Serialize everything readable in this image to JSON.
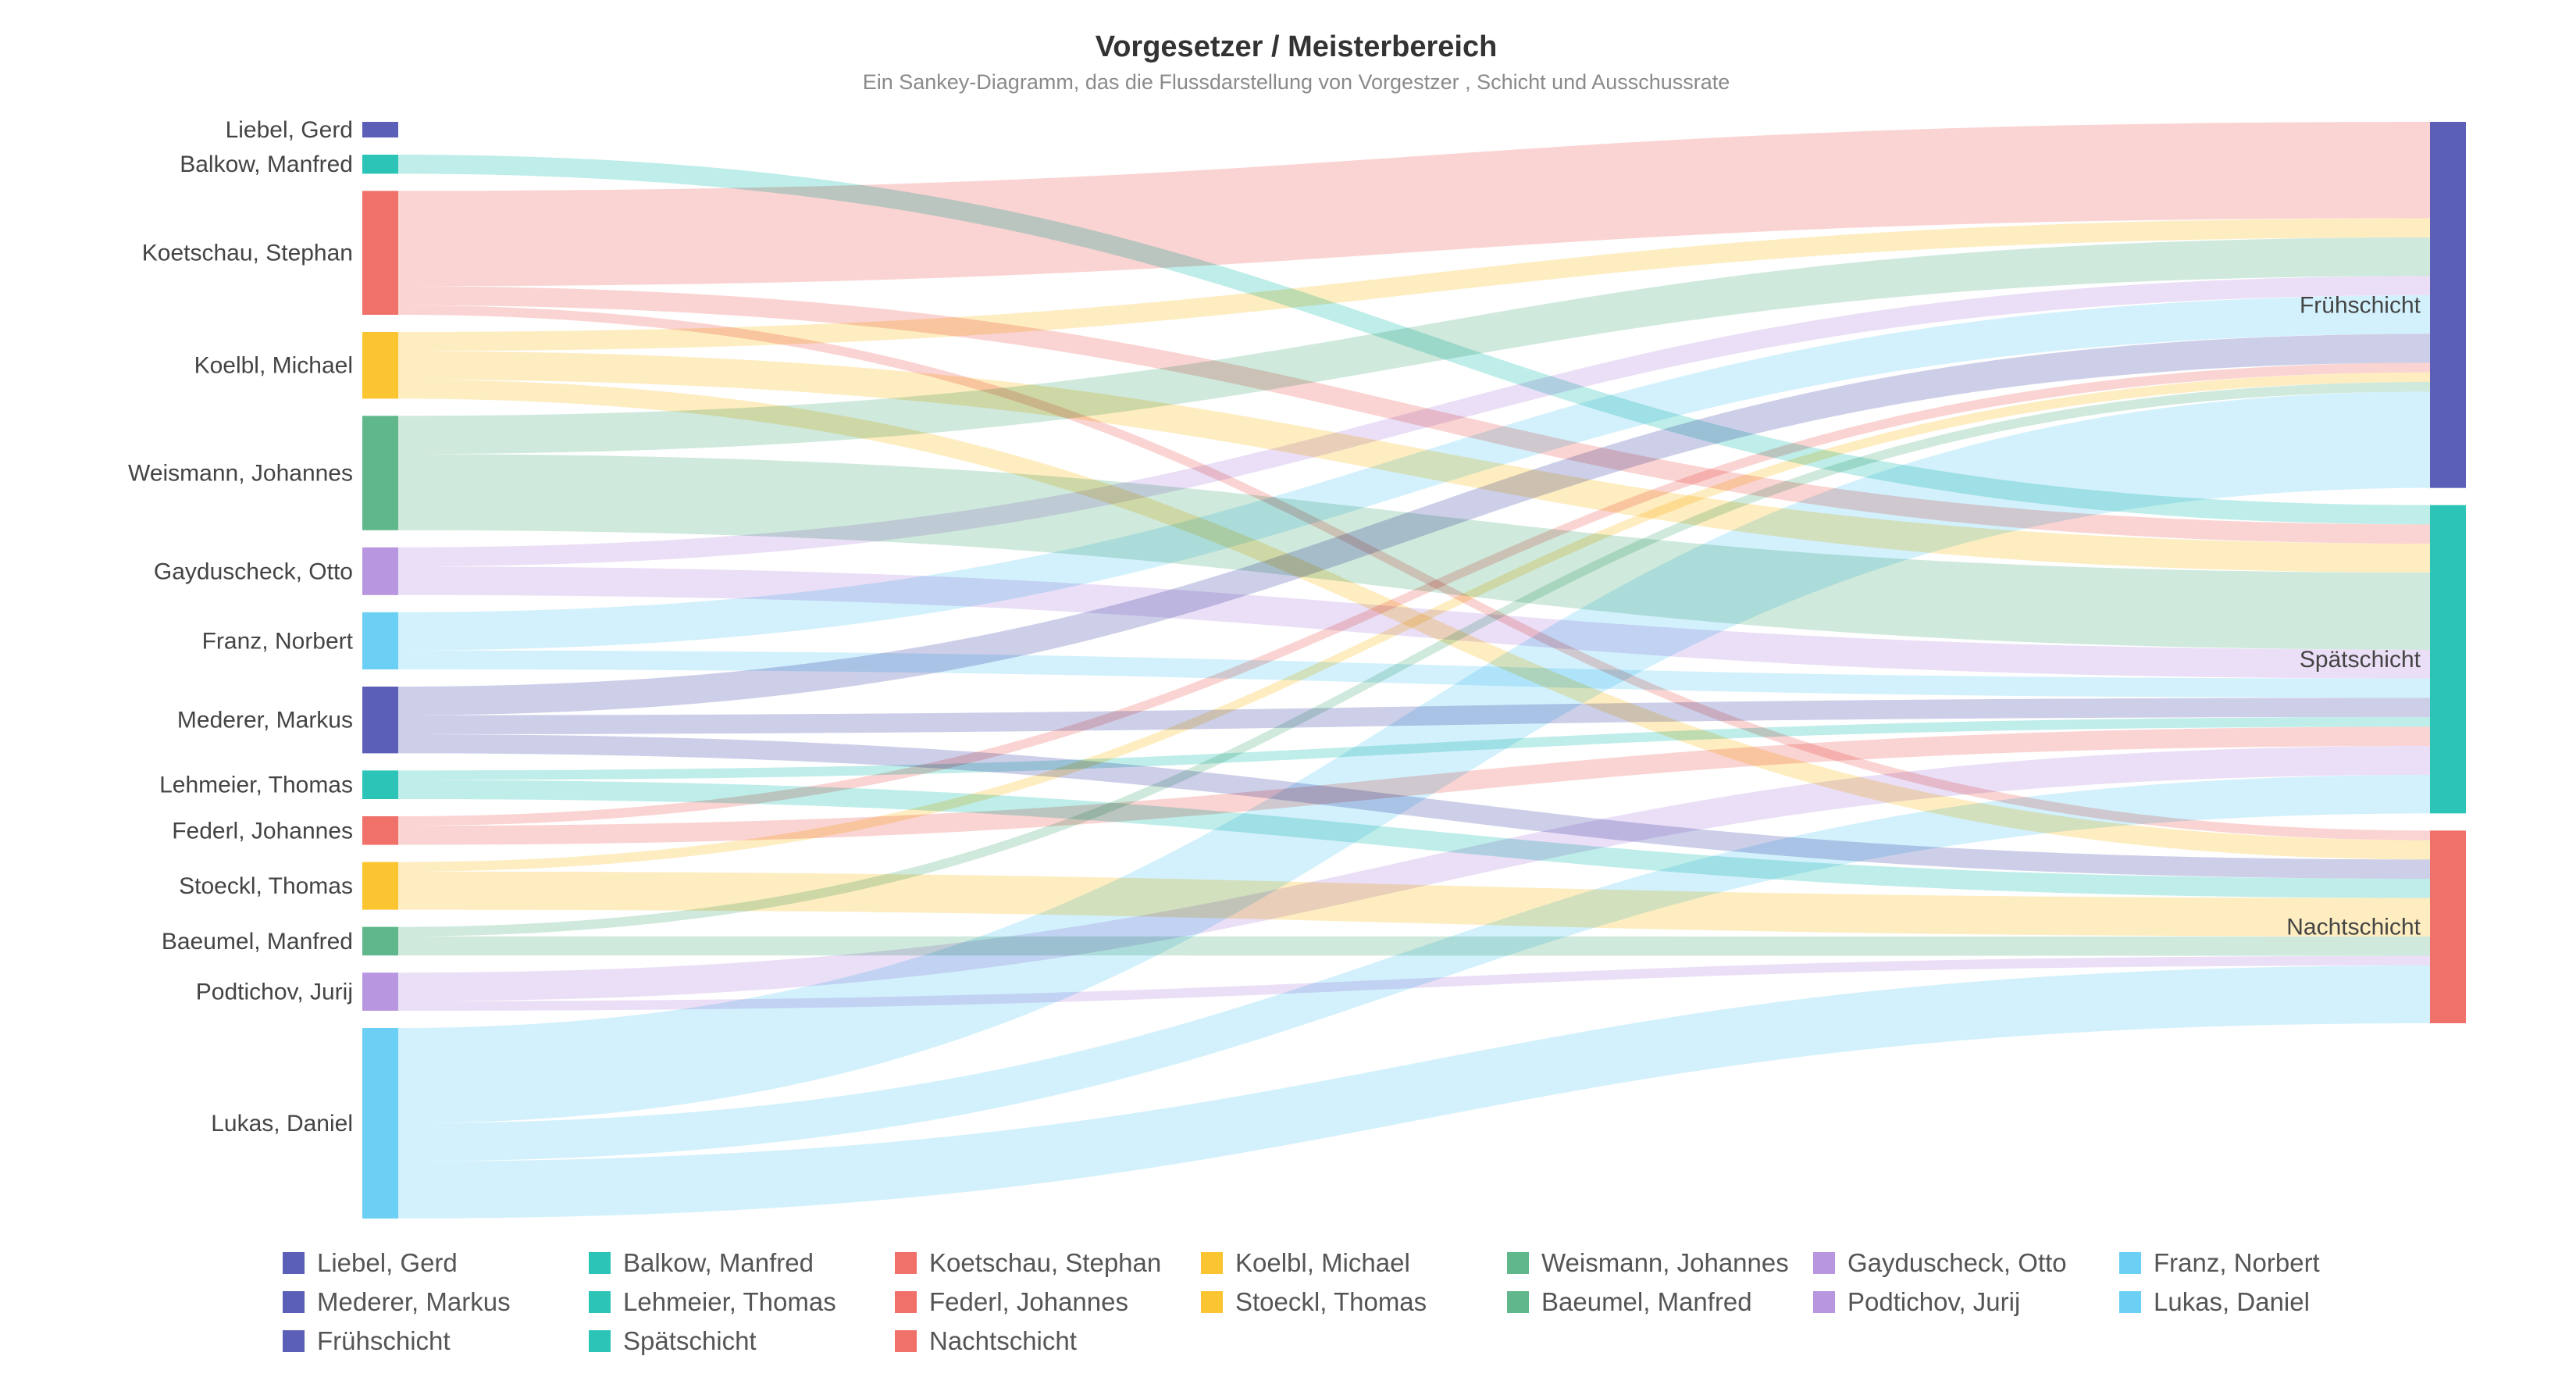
{
  "chart_data": {
    "type": "sankey",
    "title": "Vorgesetzer / Meisterbereich",
    "subtitle": "Ein Sankey-Diagramm, das die Flussdarstellung von Vorgestzer , Schicht und Ausschussrate",
    "colors": {
      "Liebel, Gerd": "#5b5fb7",
      "Balkow, Manfred": "#2bc4b6",
      "Koetschau, Stephan": "#f0706a",
      "Koelbl, Michael": "#fbc531",
      "Weismann, Johannes": "#5fb78b",
      "Gayduscheck, Otto": "#b896e0",
      "Franz, Norbert": "#6ccff4",
      "Mederer, Markus": "#5b5fb7",
      "Lehmeier, Thomas": "#2bc4b6",
      "Federl, Johannes": "#f0706a",
      "Stoeckl, Thomas": "#fbc531",
      "Baeumel, Manfred": "#5fb78b",
      "Podtichov, Jurij": "#b896e0",
      "Lukas, Daniel": "#6ccff4",
      "Frühschicht": "#5b5fb7",
      "Spätschicht": "#2bc4b6",
      "Nachtschicht": "#f0706a"
    },
    "sources": [
      "Liebel, Gerd",
      "Balkow, Manfred",
      "Koetschau, Stephan",
      "Koelbl, Michael",
      "Weismann, Johannes",
      "Gayduscheck, Otto",
      "Franz, Norbert",
      "Mederer, Markus",
      "Lehmeier, Thomas",
      "Federl, Johannes",
      "Stoeckl, Thomas",
      "Baeumel, Manfred",
      "Podtichov, Jurij",
      "Lukas, Daniel"
    ],
    "targets": [
      "Frühschicht",
      "Spätschicht",
      "Nachtschicht"
    ],
    "links": [
      {
        "source": "Balkow, Manfred",
        "target": "Spätschicht",
        "value": 1
      },
      {
        "source": "Koetschau, Stephan",
        "target": "Frühschicht",
        "value": 5
      },
      {
        "source": "Koetschau, Stephan",
        "target": "Spätschicht",
        "value": 1
      },
      {
        "source": "Koetschau, Stephan",
        "target": "Nachtschicht",
        "value": 0.5
      },
      {
        "source": "Koelbl, Michael",
        "target": "Frühschicht",
        "value": 1
      },
      {
        "source": "Koelbl, Michael",
        "target": "Spätschicht",
        "value": 1.5
      },
      {
        "source": "Koelbl, Michael",
        "target": "Nachtschicht",
        "value": 1
      },
      {
        "source": "Weismann, Johannes",
        "target": "Frühschicht",
        "value": 2
      },
      {
        "source": "Weismann, Johannes",
        "target": "Spätschicht",
        "value": 4
      },
      {
        "source": "Gayduscheck, Otto",
        "target": "Frühschicht",
        "value": 1
      },
      {
        "source": "Gayduscheck, Otto",
        "target": "Spätschicht",
        "value": 1.5
      },
      {
        "source": "Franz, Norbert",
        "target": "Frühschicht",
        "value": 2
      },
      {
        "source": "Franz, Norbert",
        "target": "Spätschicht",
        "value": 1
      },
      {
        "source": "Mederer, Markus",
        "target": "Frühschicht",
        "value": 1.5
      },
      {
        "source": "Mederer, Markus",
        "target": "Spätschicht",
        "value": 1
      },
      {
        "source": "Mederer, Markus",
        "target": "Nachtschicht",
        "value": 1
      },
      {
        "source": "Lehmeier, Thomas",
        "target": "Spätschicht",
        "value": 0.5
      },
      {
        "source": "Lehmeier, Thomas",
        "target": "Nachtschicht",
        "value": 1
      },
      {
        "source": "Federl, Johannes",
        "target": "Frühschicht",
        "value": 0.5
      },
      {
        "source": "Federl, Johannes",
        "target": "Spätschicht",
        "value": 1
      },
      {
        "source": "Stoeckl, Thomas",
        "target": "Frühschicht",
        "value": 0.5
      },
      {
        "source": "Stoeckl, Thomas",
        "target": "Nachtschicht",
        "value": 2
      },
      {
        "source": "Baeumel, Manfred",
        "target": "Frühschicht",
        "value": 0.5
      },
      {
        "source": "Baeumel, Manfred",
        "target": "Nachtschicht",
        "value": 1
      },
      {
        "source": "Podtichov, Jurij",
        "target": "Spätschicht",
        "value": 1.5
      },
      {
        "source": "Podtichov, Jurij",
        "target": "Nachtschicht",
        "value": 0.5
      },
      {
        "source": "Lukas, Daniel",
        "target": "Frühschicht",
        "value": 5
      },
      {
        "source": "Lukas, Daniel",
        "target": "Spätschicht",
        "value": 2
      },
      {
        "source": "Lukas, Daniel",
        "target": "Nachtschicht",
        "value": 3
      }
    ],
    "legend": [
      "Liebel, Gerd",
      "Balkow, Manfred",
      "Koetschau, Stephan",
      "Koelbl, Michael",
      "Weismann, Johannes",
      "Gayduscheck, Otto",
      "Franz, Norbert",
      "Mederer, Markus",
      "Lehmeier, Thomas",
      "Federl, Johannes",
      "Stoeckl, Thomas",
      "Baeumel, Manfred",
      "Podtichov, Jurij",
      "Lukas, Daniel",
      "Frühschicht",
      "Spätschicht",
      "Nachtschicht"
    ],
    "legend_placement": "bottom"
  }
}
